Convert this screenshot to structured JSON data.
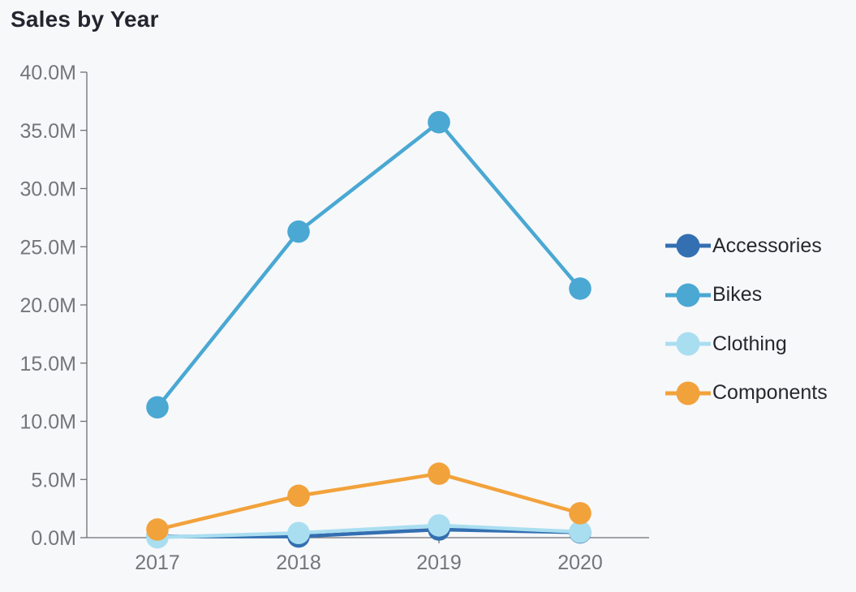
{
  "page": {
    "background_color": "#f7f8fa"
  },
  "chart_data": {
    "type": "line",
    "title": "Sales by Year",
    "xlabel": "",
    "ylabel": "",
    "value_unit": "millions (M)",
    "categories": [
      "2017",
      "2018",
      "2019",
      "2020"
    ],
    "x_axis_ticks": [
      "2017",
      "2018",
      "2019",
      "2020"
    ],
    "y_axis_ticks": [
      "0.0M",
      "5.0M",
      "10.0M",
      "15.0M",
      "20.0M",
      "25.0M",
      "30.0M",
      "35.0M",
      "40.0M"
    ],
    "ylim": [
      0,
      40
    ],
    "y_tick_step": 5,
    "grid": false,
    "legend_position": "right",
    "title_color": "#23262f",
    "axis_line_color": "#6f6f73",
    "axis_text_color": "#75757a",
    "series": [
      {
        "name": "Accessories",
        "color": "#336fb1",
        "values": [
          0.1,
          0.1,
          0.7,
          0.45
        ]
      },
      {
        "name": "Bikes",
        "color": "#4aa8d3",
        "values": [
          11.2,
          26.3,
          35.7,
          21.4
        ]
      },
      {
        "name": "Clothing",
        "color": "#a9def0",
        "values": [
          0.03,
          0.4,
          1.05,
          0.5
        ]
      },
      {
        "name": "Components",
        "color": "#f2a23b",
        "values": [
          0.7,
          3.6,
          5.5,
          2.1
        ]
      }
    ]
  }
}
